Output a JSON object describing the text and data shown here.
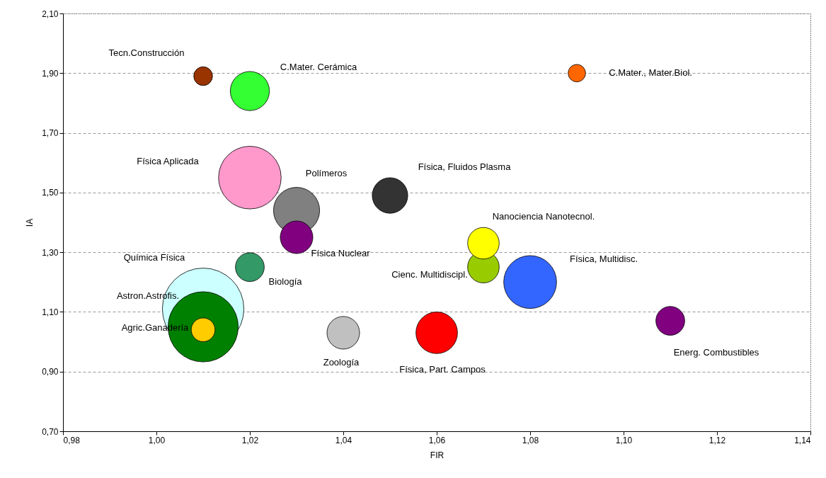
{
  "chart_data": {
    "type": "bubble",
    "xlabel": "FIR",
    "ylabel": "IA",
    "x": [
      1.01,
      1.02,
      1.09,
      1.02,
      1.03,
      1.03,
      1.05,
      1.07,
      1.07,
      1.08,
      1.01,
      1.01,
      1.01,
      1.02,
      1.04,
      1.06,
      1.11
    ],
    "values": [
      1.89,
      1.84,
      1.9,
      1.55,
      1.44,
      1.35,
      1.49,
      1.25,
      1.33,
      1.2,
      1.11,
      1.05,
      1.04,
      1.25,
      1.03,
      1.03,
      1.07
    ],
    "sizes": [
      0.053,
      0.23,
      0.046,
      0.59,
      0.32,
      0.16,
      0.19,
      0.15,
      0.15,
      0.42,
      1,
      0.74,
      0.085,
      0.125,
      0.16,
      0.26,
      0.125
    ],
    "colors": [
      "#993300",
      "#33ff33",
      "#ff6600",
      "#ff99cc",
      "#808080",
      "#800080",
      "#333333",
      "#99cc00",
      "#ffff00",
      "#3366ff",
      "#ccffff",
      "#008000",
      "#ffcc00",
      "#339966",
      "#c0c0c0",
      "#ff0000",
      "#800080"
    ],
    "annotations": [
      "Tecn.Construcción",
      "C.Mater. Cerámica",
      "C.Mater., Mater.Biol.",
      "Física Aplicada",
      "Polímeros",
      "Física Nuclear",
      "Física, Fluidos Plasma",
      "Cienc. Multidiscipl.",
      "Nanociencia Nanotecnol.",
      "Física, Multidisc.",
      "Química Física",
      "Astron.Astrofis.",
      "Agric.Ganadería",
      "Biología",
      "Zoología",
      "Física, Part. Campos",
      "Energ. Combustibles"
    ],
    "xlim": [
      0.98,
      1.14
    ],
    "xticks": [
      {
        "value": 0.98,
        "label": "0,98"
      },
      {
        "value": 1.0,
        "label": "1,00"
      },
      {
        "value": 1.02,
        "label": "1,02"
      },
      {
        "value": 1.04,
        "label": "1,04"
      },
      {
        "value": 1.06,
        "label": "1,06"
      },
      {
        "value": 1.08,
        "label": "1,08"
      },
      {
        "value": 1.1,
        "label": "1,10"
      },
      {
        "value": 1.12,
        "label": "1,12"
      },
      {
        "value": 1.14,
        "label": "1,14"
      }
    ],
    "ylim": [
      0.7,
      2.1
    ],
    "yticks": [
      {
        "value": 0.7,
        "label": "0,70"
      },
      {
        "value": 0.9,
        "label": "0,90"
      },
      {
        "value": 1.1,
        "label": "1,10"
      },
      {
        "value": 1.3,
        "label": "1,30"
      },
      {
        "value": 1.5,
        "label": "1,50"
      },
      {
        "value": 1.7,
        "label": "1,70"
      },
      {
        "value": 1.9,
        "label": "1,90"
      },
      {
        "value": 2.1,
        "label": "2,10"
      }
    ],
    "grid": "y",
    "legend": false
  }
}
